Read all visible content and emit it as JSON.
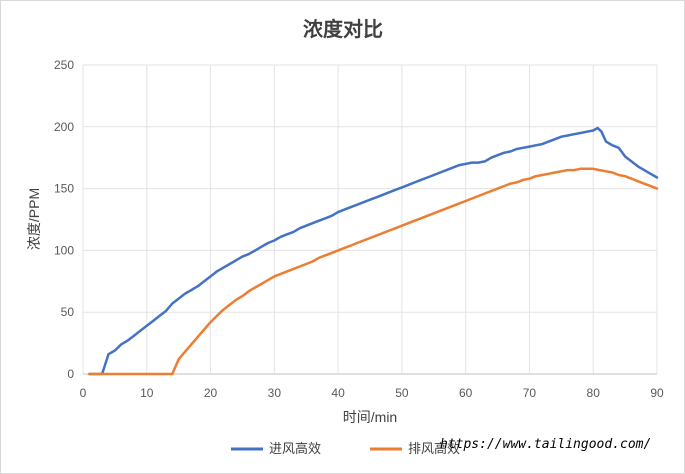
{
  "chart_data": {
    "type": "line",
    "title": "浓度对比",
    "xlabel": "时间/min",
    "ylabel": "浓度/PPM",
    "xlim": [
      0,
      90
    ],
    "ylim": [
      0,
      250
    ],
    "xticks": [
      0,
      10,
      20,
      30,
      40,
      50,
      60,
      70,
      80,
      90
    ],
    "yticks": [
      0,
      50,
      100,
      150,
      200,
      250
    ],
    "grid": true,
    "legend_position": "bottom",
    "series": [
      {
        "name": "进风高效",
        "color": "#4472C4",
        "x": [
          1,
          2,
          3,
          3.5,
          4,
          5,
          6,
          7,
          8,
          9,
          10,
          11,
          12,
          13,
          14,
          15,
          16,
          17,
          18,
          19,
          20,
          21,
          22,
          23,
          24,
          25,
          26,
          27,
          28,
          29,
          30,
          31,
          32,
          33,
          34,
          35,
          36,
          37,
          38,
          39,
          40,
          41,
          42,
          43,
          44,
          45,
          46,
          47,
          48,
          49,
          50,
          51,
          52,
          53,
          54,
          55,
          56,
          57,
          58,
          59,
          60,
          61,
          62,
          63,
          64,
          65,
          66,
          67,
          68,
          69,
          70,
          71,
          72,
          73,
          74,
          75,
          76,
          77,
          78,
          79,
          80,
          80.7,
          81.3,
          82,
          83,
          84,
          85,
          86,
          87,
          88,
          89,
          90
        ],
        "y": [
          0,
          0,
          0,
          8,
          16,
          19,
          24,
          27,
          31,
          35,
          39,
          43,
          47,
          51,
          57,
          61,
          65,
          68,
          71,
          75,
          79,
          83,
          86,
          89,
          92,
          95,
          97,
          100,
          103,
          106,
          108,
          111,
          113,
          115,
          118,
          120,
          122,
          124,
          126,
          128,
          131,
          133,
          135,
          137,
          139,
          141,
          143,
          145,
          147,
          149,
          151,
          153,
          155,
          157,
          159,
          161,
          163,
          165,
          167,
          169,
          170,
          171,
          171,
          172,
          175,
          177,
          179,
          180,
          182,
          183,
          184,
          185,
          186,
          188,
          190,
          192,
          193,
          194,
          195,
          196,
          197,
          199,
          196,
          188,
          185,
          183,
          176,
          172,
          168,
          165,
          162,
          159
        ]
      },
      {
        "name": "排风高效",
        "color": "#ED7D31",
        "x": [
          1,
          2,
          4,
          6,
          8,
          10,
          12,
          13,
          14,
          14.5,
          15,
          16,
          17,
          18,
          19,
          20,
          21,
          22,
          23,
          24,
          25,
          26,
          27,
          28,
          29,
          30,
          31,
          32,
          33,
          34,
          35,
          36,
          37,
          38,
          39,
          40,
          41,
          42,
          43,
          44,
          45,
          46,
          47,
          48,
          49,
          50,
          51,
          52,
          53,
          54,
          55,
          56,
          57,
          58,
          59,
          60,
          61,
          62,
          63,
          64,
          65,
          66,
          67,
          68,
          69,
          70,
          71,
          72,
          73,
          74,
          75,
          76,
          77,
          78,
          79,
          80,
          81,
          82,
          83,
          84,
          85,
          86,
          87,
          88,
          89,
          90
        ],
        "y": [
          0,
          0,
          0,
          0,
          0,
          0,
          0,
          0,
          0,
          6,
          12,
          18,
          24,
          30,
          36,
          42,
          47,
          52,
          56,
          60,
          63,
          67,
          70,
          73,
          76,
          79,
          81,
          83,
          85,
          87,
          89,
          91,
          94,
          96,
          98,
          100,
          102,
          104,
          106,
          108,
          110,
          112,
          114,
          116,
          118,
          120,
          122,
          124,
          126,
          128,
          130,
          132,
          134,
          136,
          138,
          140,
          142,
          144,
          146,
          148,
          150,
          152,
          154,
          155,
          157,
          158,
          160,
          161,
          162,
          163,
          164,
          165,
          165,
          166,
          166,
          166,
          165,
          164,
          163,
          161,
          160,
          158,
          156,
          154,
          152,
          150
        ]
      }
    ]
  },
  "watermark": "https://www.tailingood.com/"
}
